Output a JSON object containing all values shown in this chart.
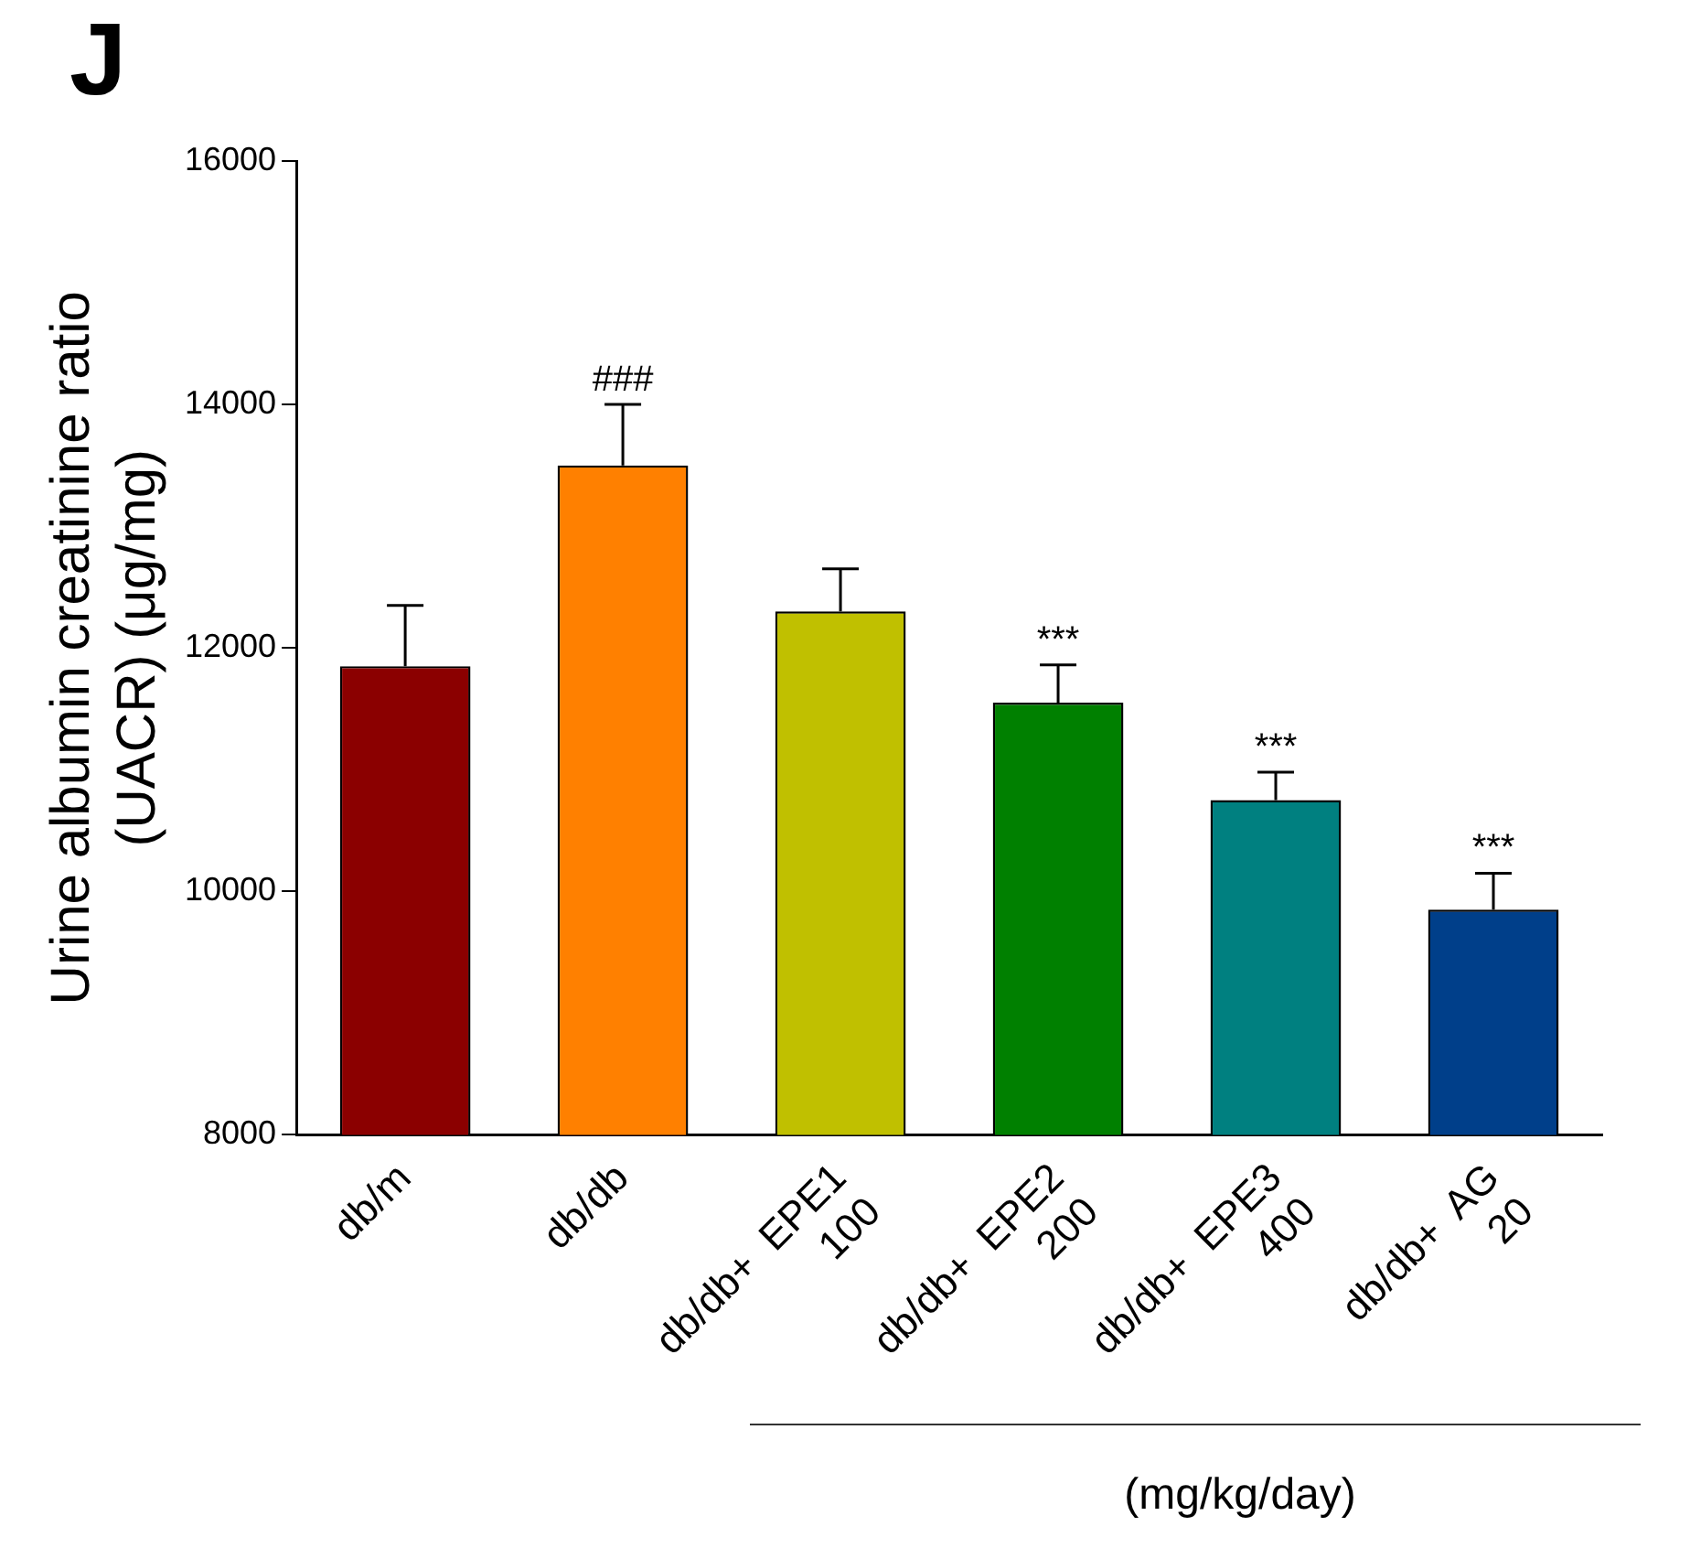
{
  "chart_data": {
    "type": "bar",
    "title": "J",
    "ylabel": "Urine albumin creatinine ratio\n(UACR) (μg/mg)",
    "categories": [
      "db/m",
      "db/db",
      "db/db+  EPE1\n100",
      "db/db+  EPE2\n200",
      "db/db+  EPE3\n400",
      "db/db+  AG\n20"
    ],
    "values": [
      11850,
      13500,
      12300,
      11550,
      10750,
      9850
    ],
    "errors": [
      500,
      500,
      350,
      310,
      230,
      300
    ],
    "colors": [
      "#8b0000",
      "#ff8000",
      "#c0c000",
      "#008000",
      "#008080",
      "#003f8a"
    ],
    "ylim": [
      8000,
      16000
    ],
    "yticks": [
      8000,
      10000,
      12000,
      14000,
      16000
    ],
    "grid": false,
    "legend": false,
    "annotations": [
      {
        "text": "###",
        "x": "db/db",
        "y": 13500
      },
      {
        "text": "***",
        "x": "db/db+  EPE2\n200",
        "y": 11550
      },
      {
        "text": "***",
        "x": "db/db+  EPE3\n400",
        "y": 10750
      },
      {
        "text": "***",
        "x": "db/db+  AG\n20",
        "y": 9850
      },
      "(mg/kg/day)"
    ]
  }
}
